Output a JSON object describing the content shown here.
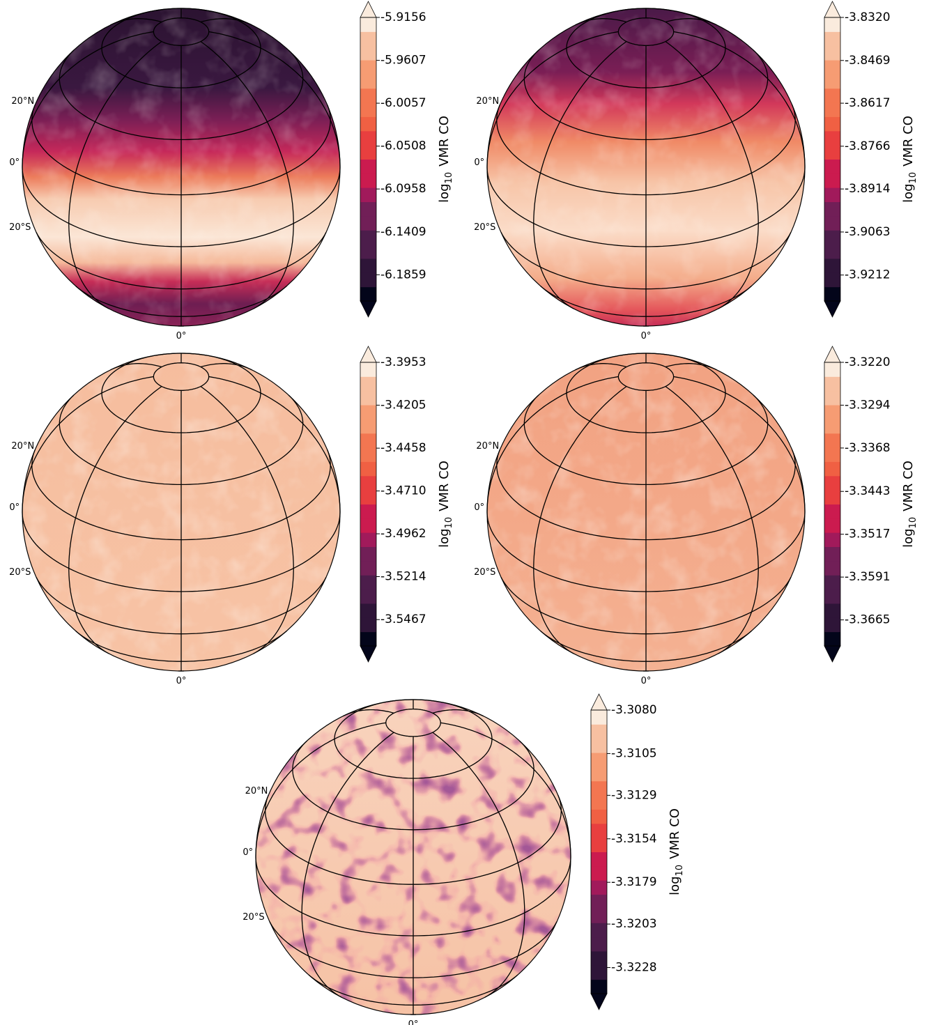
{
  "chart_data": [
    {
      "type": "globe",
      "colorbar_label": [
        "log",
        "10",
        "VMR CO"
      ],
      "lat_labels": [
        "20°N",
        "0°",
        "20°S"
      ],
      "lon_label": "0°",
      "clim": [
        -6.2135,
        -5.9156
      ],
      "cticks": [
        -5.9156,
        -5.9607,
        -6.0057,
        -6.0508,
        -6.0958,
        -6.1409,
        -6.1859
      ],
      "colormap": [
        "#03051a",
        "#2e1538",
        "#4c1d4b",
        "#711f57",
        "#a11a5b",
        "#cb1b4f",
        "#e83f3f",
        "#f06043",
        "#f37651",
        "#f69c73",
        "#f7c0a1",
        "#faebdd"
      ]
    },
    {
      "type": "globe",
      "colorbar_label": [
        "log",
        "10",
        "VMR CO"
      ],
      "lat_labels": [
        "20°N",
        "0°",
        "20°S"
      ],
      "lon_label": "0°",
      "clim": [
        -3.9302,
        -3.832
      ],
      "cticks": [
        {
          "value": -3.832,
          "label": "-3.8320"
        },
        -3.8469,
        -3.8617,
        -3.8766,
        -3.8914,
        -3.9063,
        -3.9212
      ],
      "colormap": [
        "#03051a",
        "#2e1538",
        "#4c1d4b",
        "#711f57",
        "#a11a5b",
        "#cb1b4f",
        "#e83f3f",
        "#f06043",
        "#f37651",
        "#f69c73",
        "#f7c0a1",
        "#faebdd"
      ]
    },
    {
      "type": "globe",
      "colorbar_label": [
        "log",
        "10",
        "VMR CO"
      ],
      "lat_labels": [
        "20°N",
        "0°",
        "20°S"
      ],
      "lon_label": "0°",
      "clim": [
        -3.5622,
        -3.3953
      ],
      "cticks": [
        -3.3953,
        -3.4205,
        -3.4458,
        {
          "value": -3.471,
          "label": "-3.4710"
        },
        -3.4962,
        -3.5214,
        -3.5467
      ],
      "colormap": [
        "#03051a",
        "#2e1538",
        "#4c1d4b",
        "#711f57",
        "#a11a5b",
        "#cb1b4f",
        "#e83f3f",
        "#f06043",
        "#f37651",
        "#f69c73",
        "#f7c0a1",
        "#faebdd"
      ]
    },
    {
      "type": "globe",
      "colorbar_label": [
        "log",
        "10",
        "VMR CO"
      ],
      "lat_labels": [
        "20°N",
        "0°",
        "20°S"
      ],
      "lon_label": "0°",
      "clim": [
        -3.371,
        -3.322
      ],
      "cticks": [
        {
          "value": -3.322,
          "label": "-3.3220"
        },
        -3.3294,
        -3.3368,
        -3.3443,
        -3.3517,
        -3.3591,
        -3.3665
      ],
      "colormap": [
        "#03051a",
        "#2e1538",
        "#4c1d4b",
        "#711f57",
        "#a11a5b",
        "#cb1b4f",
        "#e83f3f",
        "#f06043",
        "#f37651",
        "#f69c73",
        "#f7c0a1",
        "#faebdd"
      ]
    },
    {
      "type": "globe",
      "colorbar_label": [
        "log",
        "10",
        "VMR CO"
      ],
      "lat_labels": [
        "20°N",
        "0°",
        "20°S"
      ],
      "lon_label": "0°",
      "clim": [
        -3.3243,
        -3.308
      ],
      "cticks": [
        {
          "value": -3.308,
          "label": "-3.3080"
        },
        -3.3105,
        -3.3129,
        -3.3154,
        -3.3179,
        -3.3203,
        -3.3228
      ],
      "colormap": [
        "#03051a",
        "#2e1538",
        "#4c1d4b",
        "#711f57",
        "#a11a5b",
        "#cb1b4f",
        "#e83f3f",
        "#f06043",
        "#f37651",
        "#f69c73",
        "#f7c0a1",
        "#faebdd"
      ]
    }
  ]
}
